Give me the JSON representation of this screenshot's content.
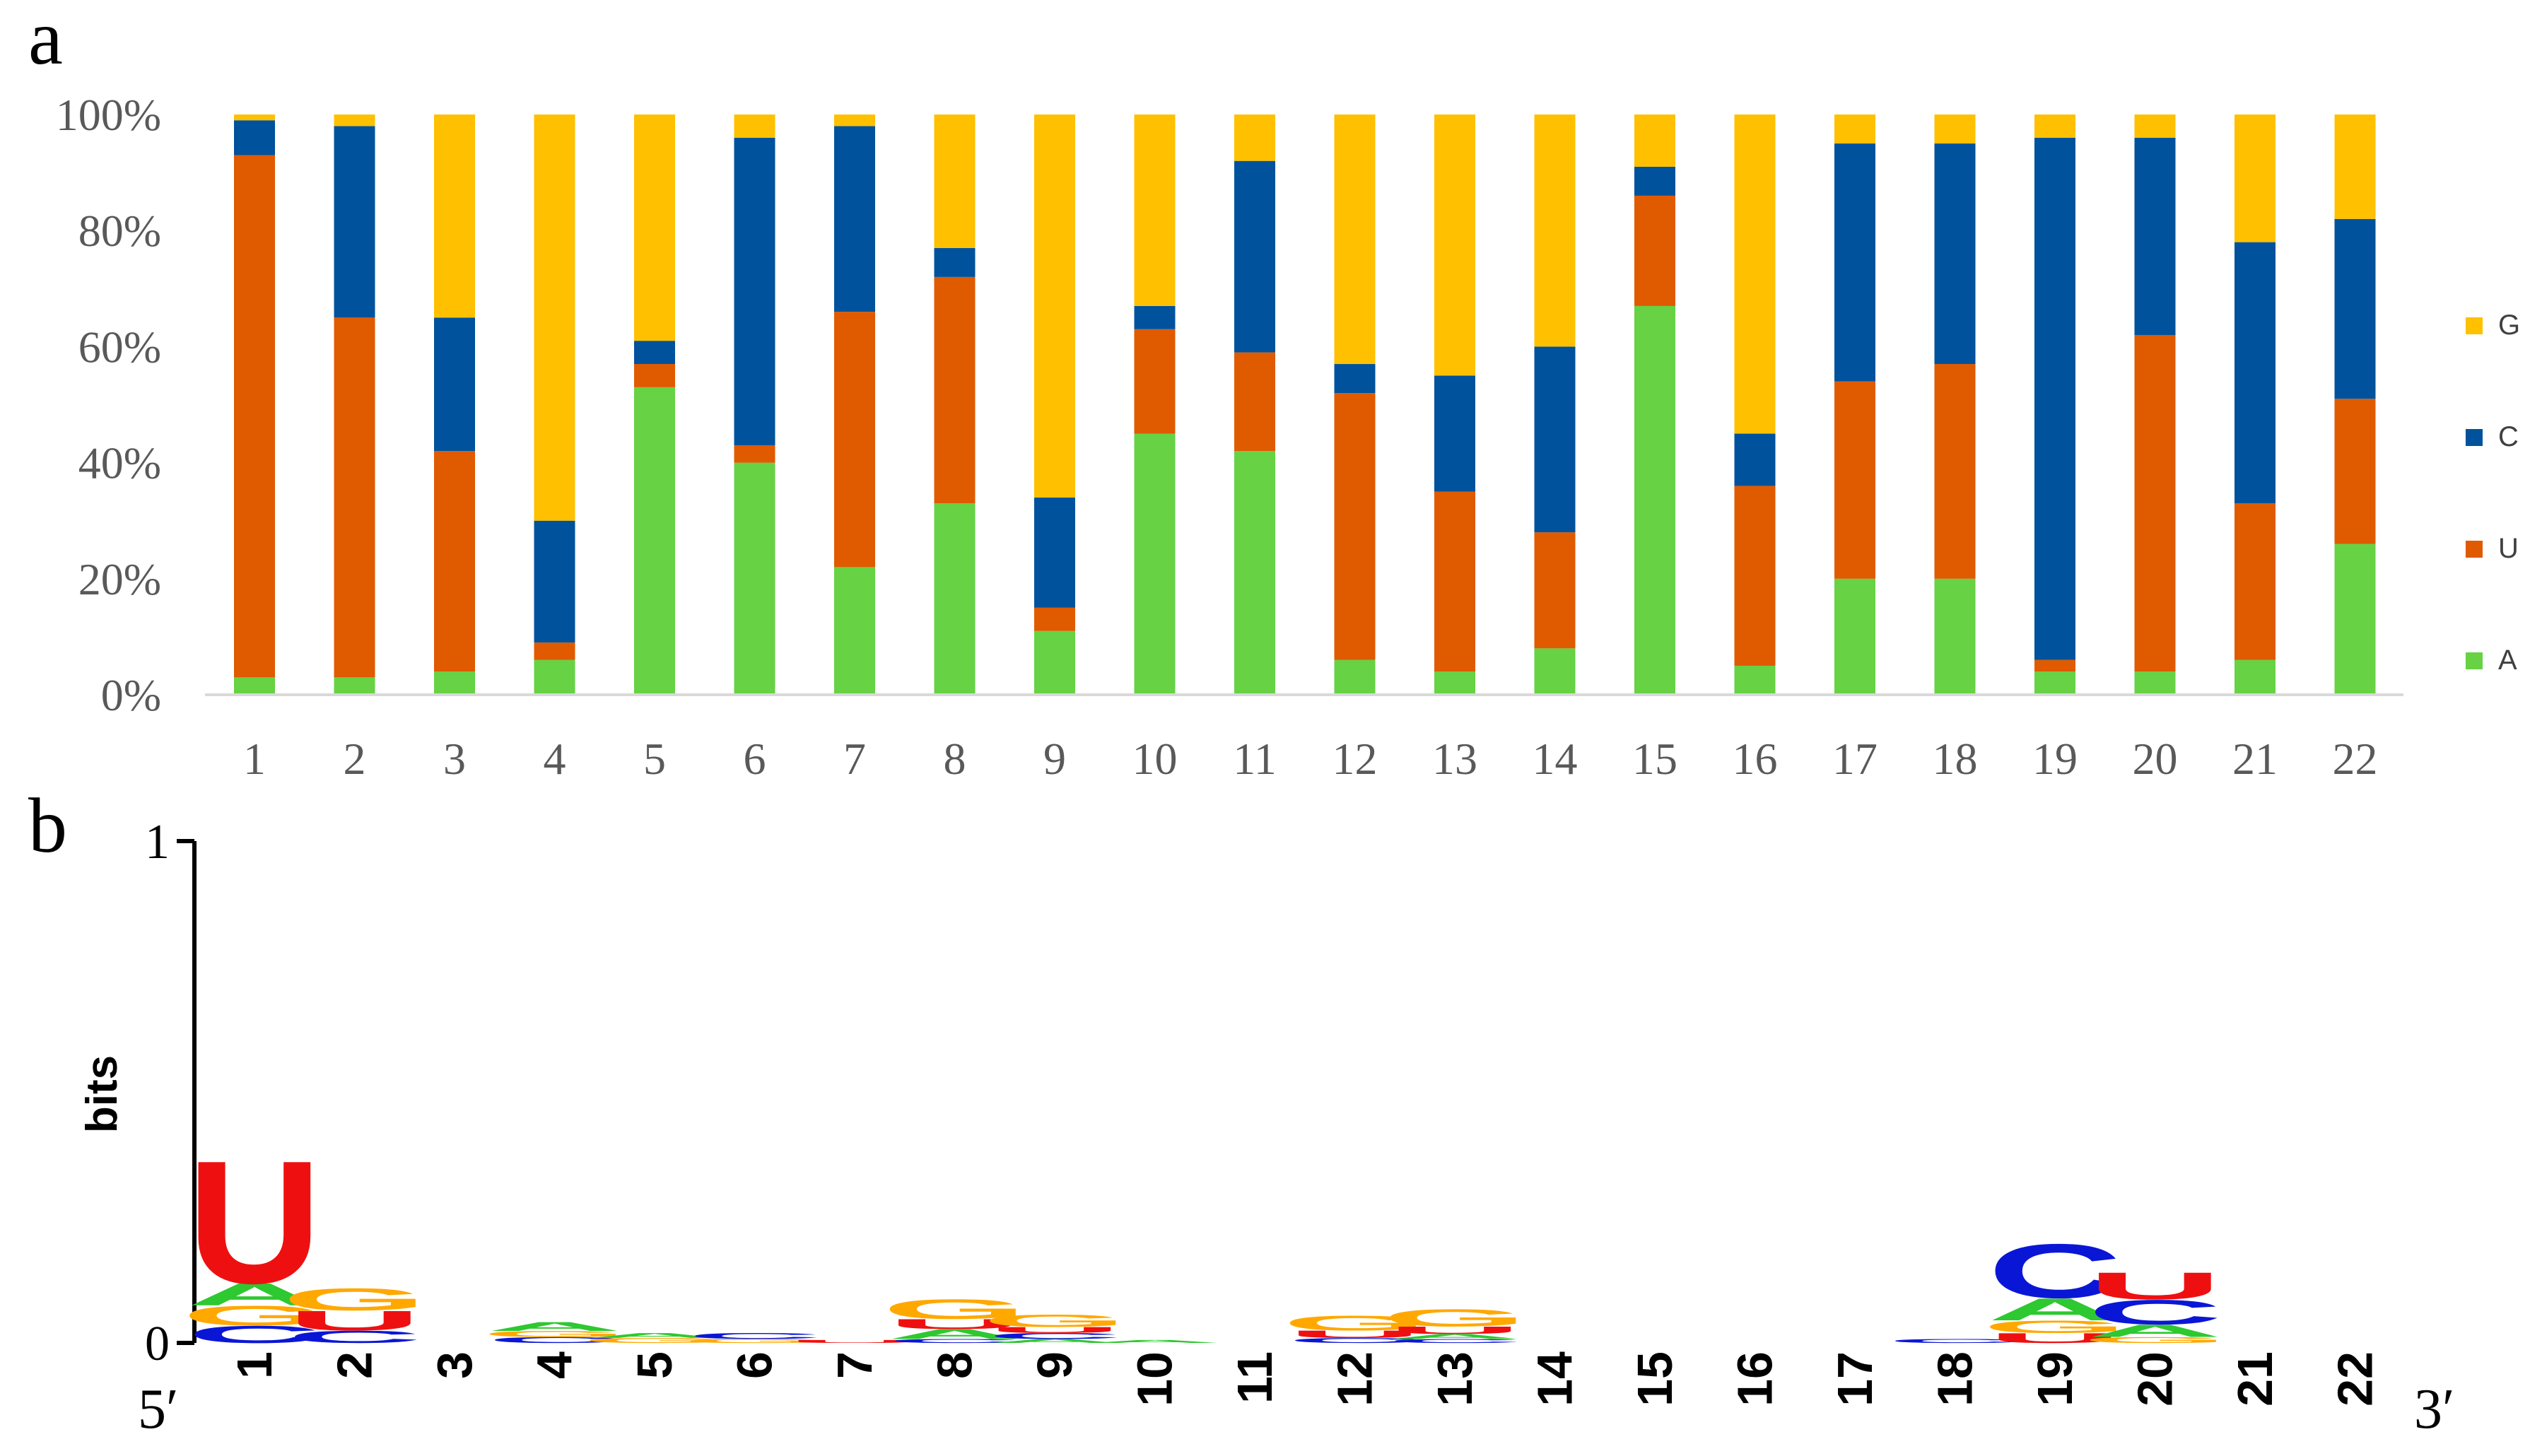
{
  "colors": {
    "A": "#66d244",
    "U": "#e05a00",
    "C": "#00529c",
    "G": "#ffc000",
    "logo_A": "#2ec830",
    "logo_C": "#0a16d6",
    "logo_G": "#ffa800",
    "logo_U": "#ee1010",
    "axis": "#d9d9d9",
    "tick_text": "#595959"
  },
  "chart_data": [
    {
      "panel_label": "a",
      "type": "bar",
      "stacked": true,
      "categories": [
        "1",
        "2",
        "3",
        "4",
        "5",
        "6",
        "7",
        "8",
        "9",
        "10",
        "11",
        "12",
        "13",
        "14",
        "15",
        "16",
        "17",
        "18",
        "19",
        "20",
        "21",
        "22"
      ],
      "series": [
        {
          "name": "A",
          "values": [
            3,
            3,
            4,
            6,
            53,
            40,
            22,
            33,
            11,
            45,
            42,
            6,
            4,
            8,
            67,
            5,
            20,
            20,
            4,
            4,
            6,
            26
          ]
        },
        {
          "name": "U",
          "values": [
            90,
            62,
            38,
            3,
            4,
            3,
            44,
            39,
            4,
            18,
            17,
            46,
            31,
            20,
            19,
            31,
            34,
            37,
            2,
            58,
            27,
            25
          ]
        },
        {
          "name": "C",
          "values": [
            6,
            33,
            23,
            21,
            4,
            53,
            32,
            5,
            19,
            4,
            33,
            5,
            20,
            32,
            5,
            9,
            41,
            38,
            90,
            34,
            45,
            31
          ]
        },
        {
          "name": "G",
          "values": [
            1,
            2,
            35,
            70,
            39,
            4,
            2,
            23,
            66,
            33,
            8,
            43,
            45,
            40,
            9,
            55,
            5,
            5,
            4,
            4,
            22,
            18
          ]
        }
      ],
      "ytick_labels": [
        "0%",
        "20%",
        "40%",
        "60%",
        "80%",
        "100%"
      ],
      "ylim": [
        0,
        100
      ],
      "legend": [
        "G",
        "C",
        "U",
        "A"
      ],
      "legend_position": "right"
    },
    {
      "panel_label": "b",
      "type": "sequence-logo",
      "ylabel": "bits",
      "ylim": [
        0,
        1
      ],
      "ytick_labels": [
        "0",
        "1"
      ],
      "five_prime_label": "5′",
      "three_prime_label": "3′",
      "positions": [
        "1",
        "2",
        "3",
        "4",
        "5",
        "6",
        "7",
        "8",
        "9",
        "10",
        "11",
        "12",
        "13",
        "14",
        "15",
        "16",
        "17",
        "18",
        "19",
        "20",
        "21",
        "22"
      ],
      "stacks": [
        [
          {
            "letter": "C",
            "bits": 0.035
          },
          {
            "letter": "G",
            "bits": 0.04
          },
          {
            "letter": "A",
            "bits": 0.045
          },
          {
            "letter": "U",
            "bits": 0.25
          }
        ],
        [
          {
            "letter": "C",
            "bits": 0.025
          },
          {
            "letter": "U",
            "bits": 0.04
          },
          {
            "letter": "G",
            "bits": 0.045
          }
        ],
        [],
        [
          {
            "letter": "C",
            "bits": 0.012
          },
          {
            "letter": "G",
            "bits": 0.012
          },
          {
            "letter": "A",
            "bits": 0.018
          }
        ],
        [
          {
            "letter": "G",
            "bits": 0.01
          },
          {
            "letter": "A",
            "bits": 0.01
          }
        ],
        [
          {
            "letter": "G",
            "bits": 0.008
          },
          {
            "letter": "C",
            "bits": 0.012
          }
        ],
        [
          {
            "letter": "U",
            "bits": 0.006
          }
        ],
        [
          {
            "letter": "C",
            "bits": 0.008
          },
          {
            "letter": "A",
            "bits": 0.02
          },
          {
            "letter": "U",
            "bits": 0.02
          },
          {
            "letter": "G",
            "bits": 0.04
          }
        ],
        [
          {
            "letter": "A",
            "bits": 0.008
          },
          {
            "letter": "C",
            "bits": 0.012
          },
          {
            "letter": "U",
            "bits": 0.012
          },
          {
            "letter": "G",
            "bits": 0.025
          }
        ],
        [
          {
            "letter": "A",
            "bits": 0.006
          }
        ],
        [],
        [
          {
            "letter": "C",
            "bits": 0.01
          },
          {
            "letter": "U",
            "bits": 0.015
          },
          {
            "letter": "G",
            "bits": 0.03
          }
        ],
        [
          {
            "letter": "C",
            "bits": 0.008
          },
          {
            "letter": "A",
            "bits": 0.01
          },
          {
            "letter": "U",
            "bits": 0.015
          },
          {
            "letter": "G",
            "bits": 0.035
          }
        ],
        [],
        [],
        [],
        [],
        [
          {
            "letter": "C",
            "bits": 0.008
          }
        ],
        [
          {
            "letter": "U",
            "bits": 0.02
          },
          {
            "letter": "G",
            "bits": 0.025
          },
          {
            "letter": "A",
            "bits": 0.045
          },
          {
            "letter": "C",
            "bits": 0.11
          }
        ],
        [
          {
            "letter": "G",
            "bits": 0.012
          },
          {
            "letter": "A",
            "bits": 0.025
          },
          {
            "letter": "C",
            "bits": 0.05
          },
          {
            "letter": "U",
            "bits": 0.055
          }
        ],
        [],
        []
      ]
    }
  ]
}
